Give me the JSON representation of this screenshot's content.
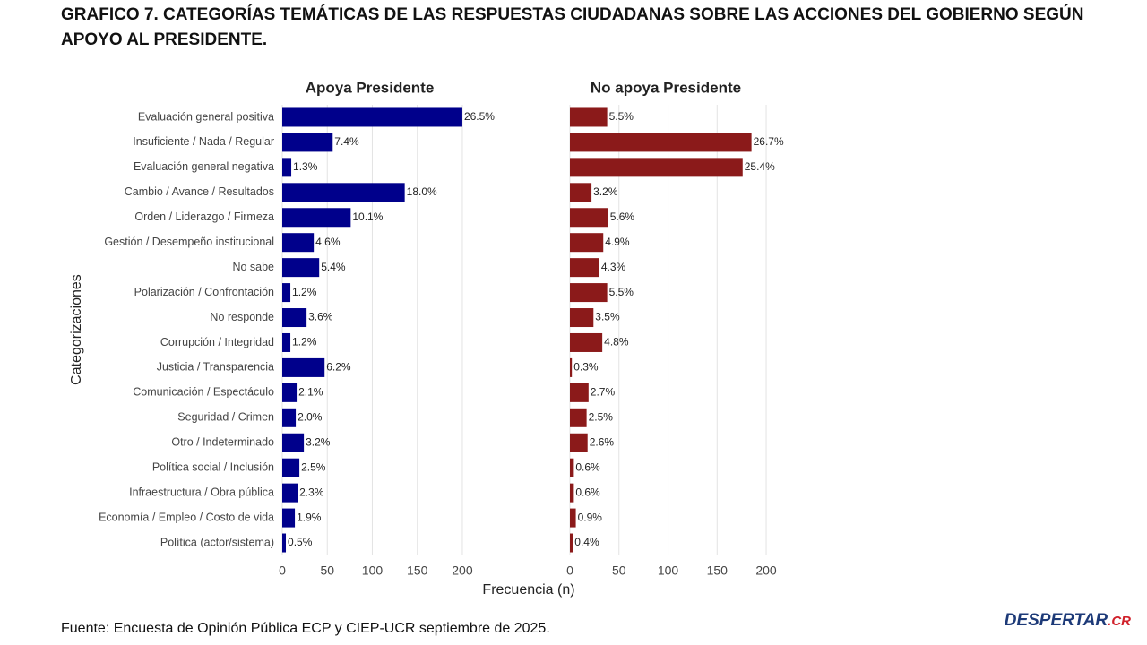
{
  "title": "GRAFICO 7. CATEGORÍAS TEMÁTICAS DE LAS RESPUESTAS CIUDADANAS SOBRE LAS ACCIONES DEL GOBIERNO SEGÚN APOYO AL PRESIDENTE.",
  "x_label": "Frecuencia (n)",
  "y_label": "Categorizaciones",
  "source": "Fuente: Encuesta de Opinión Pública ECP y CIEP-UCR septiembre de 2025.",
  "logo": {
    "name": "DESPERTAR",
    "suffix": ".CR"
  },
  "chart_data": [
    {
      "type": "bar",
      "orientation": "horizontal",
      "title": "Apoya Presidente",
      "color": "#00008b",
      "categories": [
        "Evaluación general positiva",
        "Insuficiente / Nada / Regular",
        "Evaluación general negativa",
        "Cambio / Avance / Resultados",
        "Orden / Liderazgo / Firmeza",
        "Gestión / Desempeño institucional",
        "No sabe",
        "Polarización / Confrontación",
        "No responde",
        "Corrupción / Integridad",
        "Justicia / Transparencia",
        "Comunicación / Espectáculo",
        "Seguridad / Crimen",
        "Otro / Indeterminado",
        "Política social / Inclusión",
        "Infraestructura / Obra pública",
        "Economía / Empleo / Costo de vida",
        "Política (actor/sistema)"
      ],
      "values": [
        200,
        56,
        10,
        136,
        76,
        35,
        41,
        9,
        27,
        9,
        47,
        16,
        15,
        24,
        19,
        17,
        14,
        4
      ],
      "value_labels": [
        "26.5%",
        "7.4%",
        "1.3%",
        "18.0%",
        "10.1%",
        "4.6%",
        "5.4%",
        "1.2%",
        "3.6%",
        "1.2%",
        "6.2%",
        "2.1%",
        "2.0%",
        "3.2%",
        "2.5%",
        "2.3%",
        "1.9%",
        "0.5%"
      ],
      "xlim": [
        0,
        210
      ],
      "xticks": [
        0,
        50,
        100,
        150,
        200
      ],
      "grid": true
    },
    {
      "type": "bar",
      "orientation": "horizontal",
      "title": "No apoya Presidente",
      "color": "#8b1a1a",
      "values": [
        38,
        185,
        176,
        22,
        39,
        34,
        30,
        38,
        24,
        33,
        2,
        19,
        17,
        18,
        4,
        4,
        6,
        3
      ],
      "value_labels": [
        "5.5%",
        "26.7%",
        "25.4%",
        "3.2%",
        "5.6%",
        "4.9%",
        "4.3%",
        "5.5%",
        "3.5%",
        "4.8%",
        "0.3%",
        "2.7%",
        "2.5%",
        "2.6%",
        "0.6%",
        "0.6%",
        "0.9%",
        "0.4%"
      ],
      "xlim": [
        0,
        210
      ],
      "xticks": [
        0,
        50,
        100,
        150,
        200
      ],
      "grid": true
    }
  ]
}
